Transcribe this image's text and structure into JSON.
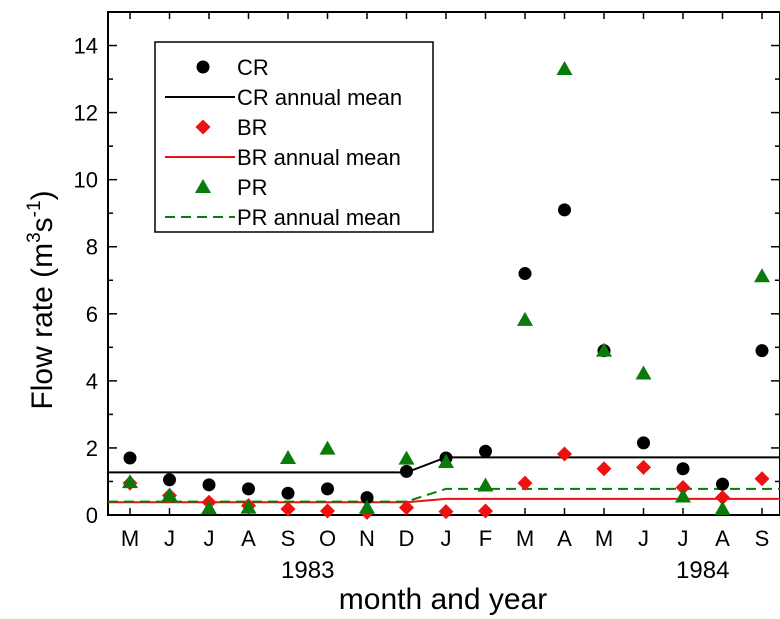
{
  "chart_data": {
    "type": "scatter",
    "xlabel": "month and year",
    "ylabel_main": "Flow rate (m",
    "ylabel_sup1": "3",
    "ylabel_mid": "s",
    "ylabel_sup2": "-1",
    "ylabel_end": ")",
    "ylim": [
      0,
      15
    ],
    "yticks": [
      "0",
      "2",
      "4",
      "6",
      "8",
      "10",
      "12",
      "14"
    ],
    "categories": [
      "M",
      "J",
      "J",
      "A",
      "S",
      "O",
      "N",
      "D",
      "J",
      "F",
      "M",
      "A",
      "M",
      "J",
      "J",
      "A",
      "S"
    ],
    "year_labels": [
      "1983",
      "1984"
    ],
    "series": [
      {
        "name": "CR",
        "marker": "circle",
        "color": "#000000",
        "values": [
          1.7,
          1.05,
          0.9,
          0.78,
          0.65,
          0.78,
          0.52,
          1.3,
          1.7,
          1.9,
          7.2,
          9.1,
          4.9,
          2.15,
          1.38,
          0.92,
          4.9
        ]
      },
      {
        "name": "BR",
        "marker": "diamond",
        "color": "#ee1111",
        "values": [
          0.95,
          0.58,
          0.38,
          0.28,
          0.18,
          0.12,
          0.08,
          0.22,
          0.1,
          0.12,
          0.95,
          1.82,
          1.38,
          1.42,
          0.82,
          0.52,
          1.08
        ]
      },
      {
        "name": "PR",
        "marker": "triangle",
        "color": "#0a7a0a",
        "values": [
          0.98,
          0.58,
          0.2,
          0.22,
          1.7,
          1.98,
          0.22,
          1.68,
          1.58,
          0.88,
          5.82,
          13.3,
          4.9,
          4.22,
          0.55,
          0.18,
          7.12
        ]
      }
    ],
    "annual_means": [
      {
        "name": "CR annual mean",
        "color": "#000000",
        "dash": "solid",
        "value_1983": 1.27,
        "value_1984": 1.72
      },
      {
        "name": "BR annual mean",
        "color": "#ee1111",
        "dash": "solid",
        "value_1983": 0.38,
        "value_1984": 0.48
      },
      {
        "name": "PR annual mean",
        "color": "#0a7a0a",
        "dash": "dashed",
        "value_1983": 0.4,
        "value_1984": 0.78
      }
    ],
    "legend_position": "top-left",
    "grid": false
  }
}
